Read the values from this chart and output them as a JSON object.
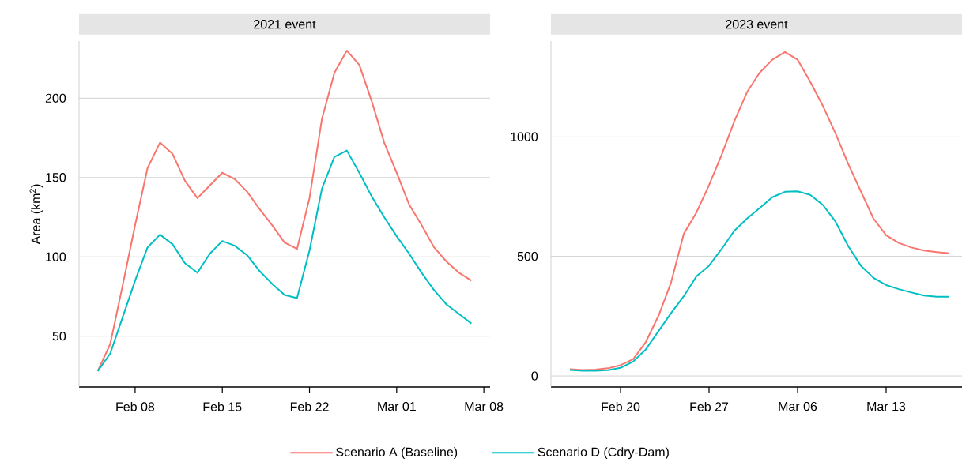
{
  "chart_data": [
    {
      "type": "line",
      "title": "2021 event",
      "ylabel": "Area (km$^{2}$)",
      "x": [
        "2021-02-05",
        "2021-02-06",
        "2021-02-07",
        "2021-02-08",
        "2021-02-09",
        "2021-02-10",
        "2021-02-11",
        "2021-02-12",
        "2021-02-13",
        "2021-02-14",
        "2021-02-15",
        "2021-02-16",
        "2021-02-17",
        "2021-02-18",
        "2021-02-19",
        "2021-02-20",
        "2021-02-21",
        "2021-02-22",
        "2021-02-23",
        "2021-02-24",
        "2021-02-25",
        "2021-02-26",
        "2021-02-27",
        "2021-02-28",
        "2021-03-01",
        "2021-03-02",
        "2021-03-03",
        "2021-03-04",
        "2021-03-05",
        "2021-03-06",
        "2021-03-07"
      ],
      "series": [
        {
          "name": "Scenario A (Baseline)",
          "color": "#f8766d",
          "values": [
            28,
            45,
            82,
            120,
            156,
            172,
            165,
            148,
            137,
            145,
            153,
            149,
            141,
            130,
            120,
            109,
            105,
            137,
            187,
            216,
            230,
            221,
            198,
            172,
            153,
            133,
            120,
            106,
            97,
            90,
            85
          ]
        },
        {
          "name": "Scenario D (Cdry-Dam)",
          "color": "#00bfc4",
          "values": [
            28,
            39,
            62,
            85,
            106,
            114,
            108,
            96,
            90,
            102,
            110,
            107,
            101,
            91,
            83,
            76,
            74,
            104,
            143,
            163,
            167,
            153,
            138,
            125,
            113,
            102,
            90,
            79,
            70,
            64,
            58
          ]
        }
      ],
      "xlim": [
        "2021-02-03T12:00",
        "2021-03-08T12:00"
      ],
      "xticks": [
        {
          "value": "2021-02-08",
          "label": "Feb 08"
        },
        {
          "value": "2021-02-15",
          "label": "Feb 15"
        },
        {
          "value": "2021-02-22",
          "label": "Feb 22"
        },
        {
          "value": "2021-03-01",
          "label": "Mar 01"
        },
        {
          "value": "2021-03-08",
          "label": "Mar 08"
        }
      ],
      "ylim": [
        18,
        236
      ],
      "yticks": [
        50,
        100,
        150,
        200
      ],
      "grid": "y",
      "legend": "bottom",
      "marker": "none",
      "line_style": "solid"
    },
    {
      "type": "line",
      "title": "2023 event",
      "x": [
        "2023-02-16",
        "2023-02-17",
        "2023-02-18",
        "2023-02-19",
        "2023-02-20",
        "2023-02-21",
        "2023-02-22",
        "2023-02-23",
        "2023-02-24",
        "2023-02-25",
        "2023-02-26",
        "2023-02-27",
        "2023-02-28",
        "2023-03-01",
        "2023-03-02",
        "2023-03-03",
        "2023-03-04",
        "2023-03-05",
        "2023-03-06",
        "2023-03-07",
        "2023-03-08",
        "2023-03-09",
        "2023-03-10",
        "2023-03-11",
        "2023-03-12",
        "2023-03-13",
        "2023-03-14",
        "2023-03-15",
        "2023-03-16",
        "2023-03-17",
        "2023-03-18"
      ],
      "series": [
        {
          "color": "#f8766d",
          "values": [
            28,
            25,
            27,
            32,
            45,
            70,
            142,
            251,
            391,
            594,
            683,
            798,
            925,
            1065,
            1186,
            1268,
            1322,
            1354,
            1322,
            1230,
            1129,
            1014,
            887,
            772,
            658,
            588,
            556,
            537,
            524,
            518,
            513
          ]
        },
        {
          "color": "#00bfc4",
          "values": [
            25,
            22,
            22,
            24,
            34,
            60,
            111,
            187,
            263,
            333,
            416,
            461,
            531,
            607,
            658,
            702,
            747,
            770,
            772,
            757,
            715,
            645,
            543,
            461,
            410,
            380,
            363,
            349,
            336,
            331,
            331
          ]
        }
      ],
      "xlim": [
        "2023-02-14T12:00",
        "2023-03-19T00:00"
      ],
      "xticks": [
        {
          "value": "2023-02-20",
          "label": "Feb 20"
        },
        {
          "value": "2023-02-27",
          "label": "Feb 27"
        },
        {
          "value": "2023-03-06",
          "label": "Mar 06"
        },
        {
          "value": "2023-03-13",
          "label": "Mar 13"
        }
      ],
      "ylim": [
        -46,
        1400
      ],
      "yticks": [
        0,
        500,
        1000
      ],
      "grid": "y",
      "marker": "none",
      "line_style": "solid"
    }
  ]
}
